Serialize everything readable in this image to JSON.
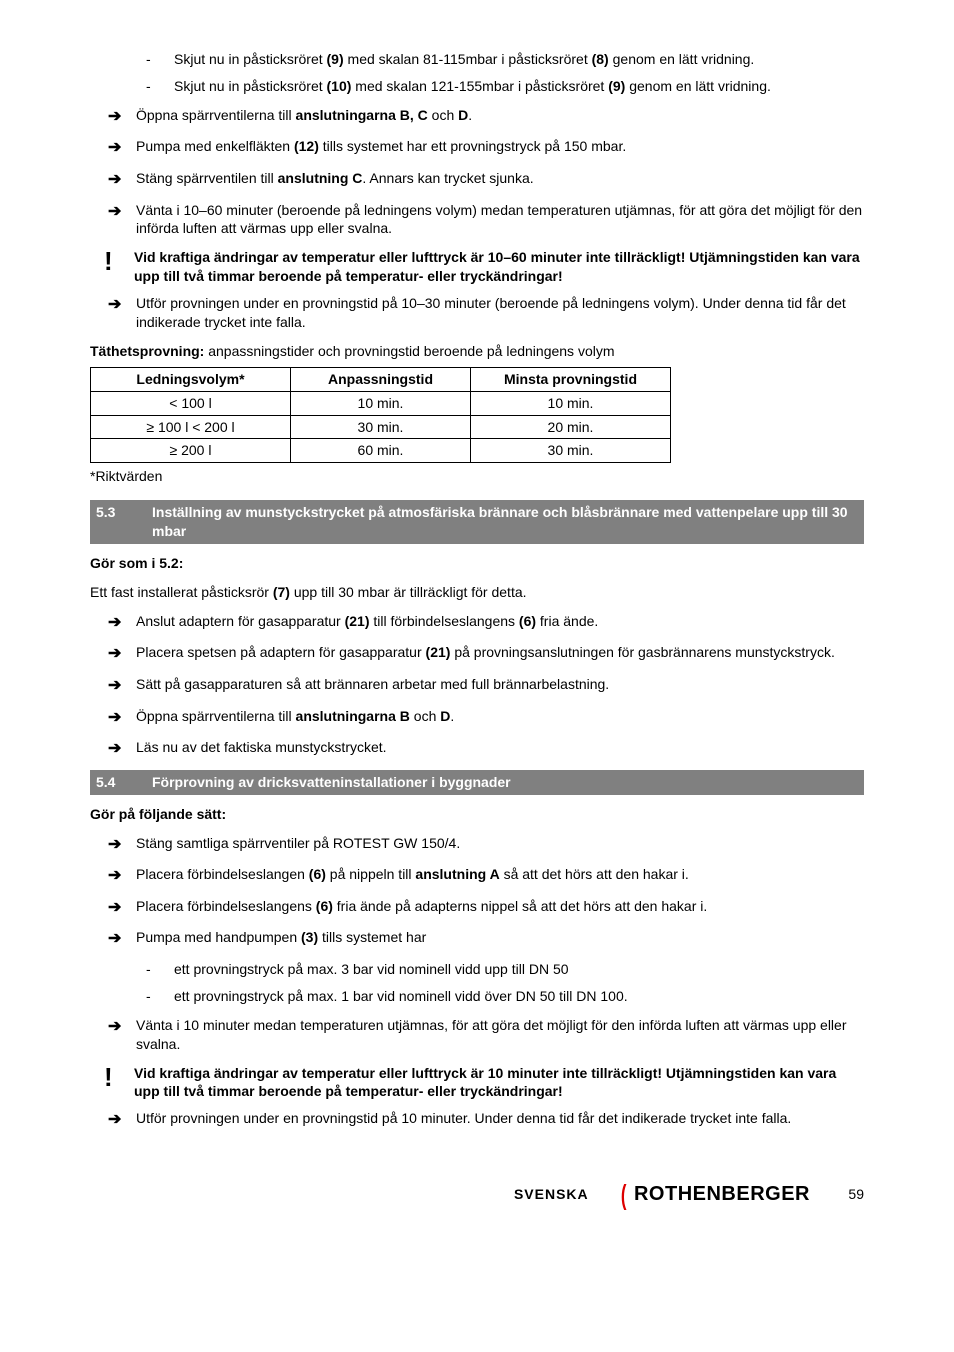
{
  "top_sublist": [
    {
      "dash": "-",
      "text": "Skjut nu in påsticksröret <b>(9)</b> med skalan 81-115mbar i påsticksröret <b>(8)</b> genom en lätt vridning."
    },
    {
      "dash": "-",
      "text": "Skjut nu in påsticksröret <b>(10)</b> med skalan 121-155mbar i påsticksröret <b>(9)</b> genom en lätt vridning."
    }
  ],
  "arrows1": [
    "Öppna spärrventilerna till <b>anslutningarna B, C</b> och <b>D</b>.",
    "Pumpa med enkelfläkten <b>(12)</b> tills systemet har ett provningstryck på 150 mbar.",
    "Stäng spärrventilen till <b>anslutning C</b>. Annars kan trycket sjunka.",
    "Vänta i 10–60 minuter (beroende på ledningens volym) medan temperaturen utjämnas, för att göra det möjligt för den införda luften att värmas upp eller svalna."
  ],
  "warn1": "Vid kraftiga ändringar av temperatur eller lufttryck är 10–60 minuter inte tillräckligt! Utjämningstiden kan vara upp till två timmar beroende på temperatur- eller tryckändringar!",
  "arrows1b": [
    "Utför provningen under en provningstid på 10–30 minuter (beroende på ledningens volym). Under denna tid får det indikerade trycket inte falla."
  ],
  "table": {
    "caption_bold": "Täthetsprovning:",
    "caption_rest": " anpassningstider och provningstid beroende på ledningens volym",
    "headers": [
      "Ledningsvolym*",
      "Anpassningstid",
      "Minsta provningstid"
    ],
    "rows": [
      [
        "< 100 l",
        "10 min.",
        "10 min."
      ],
      [
        "≥  100 l < 200 l",
        "30 min.",
        "20 min."
      ],
      [
        "≥  200 l",
        "60 min.",
        "30 min."
      ]
    ],
    "note": "*Riktvärden",
    "col_widths": [
      "200px",
      "180px",
      "200px"
    ]
  },
  "sec53": {
    "num": "5.3",
    "title": "Inställning av munstyckstrycket på atmosfäriska brännare och blåsbrännare med vattenpelare upp till 30 mbar",
    "lead": "Gör som i 5.2:",
    "intro": "Ett fast installerat påsticksrör <b>(7)</b> upp till 30 mbar är tillräckligt för detta.",
    "arrows": [
      "Anslut adaptern för gasapparatur <b>(21)</b> till förbindelseslangens <b>(6)</b> fria ände.",
      "Placera spetsen på adaptern för gasapparatur <b>(21)</b> på provningsanslutningen för gasbrännarens munstyckstryck.",
      "Sätt på gasapparaturen så att brännaren arbetar med full brännarbelastning.",
      "Öppna spärrventilerna till <b>anslutningarna B</b> och <b>D</b>.",
      "Läs nu av det faktiska munstyckstrycket."
    ]
  },
  "sec54": {
    "num": "5.4",
    "title": "Förprovning av dricksvatteninstallationer i byggnader",
    "lead": "Gör på följande sätt:",
    "arrows_a": [
      "Stäng samtliga spärrventiler på ROTEST GW 150/4.",
      "Placera förbindelseslangen <b>(6)</b> på nippeln till <b>anslutning A</b> så att det hörs att den hakar i.",
      "Placera förbindelseslangens <b>(6)</b> fria ände på adapterns nippel så att det hörs att den hakar i.",
      "Pumpa med handpumpen <b>(3)</b> tills systemet har"
    ],
    "sublist": [
      {
        "dash": "-",
        "text": "ett provningstryck på max. 3 bar vid nominell vidd upp till DN 50"
      },
      {
        "dash": "-",
        "text": "ett provningstryck på max. 1 bar vid nominell vidd över DN 50 till DN 100."
      }
    ],
    "arrows_b": [
      "Vänta i 10 minuter medan temperaturen utjämnas, för att göra det möjligt för den införda luften att värmas upp eller svalna."
    ],
    "warn": "Vid kraftiga ändringar av temperatur eller lufttryck är 10 minuter inte tillräckligt! Utjämningstiden kan vara upp till två timmar beroende på temperatur- eller tryckändringar!",
    "arrows_c": [
      "Utför provningen under en provningstid på 10 minuter. Under denna tid får det indikerade trycket inte falla."
    ]
  },
  "footer": {
    "lang": "SVENSKA",
    "brand": "ROTHENBERGER",
    "pagenum": "59"
  },
  "glyphs": {
    "arrow": "➔",
    "warn": "!"
  }
}
